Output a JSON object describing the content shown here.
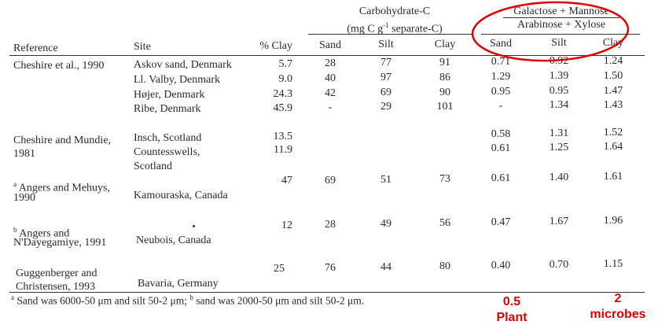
{
  "header": {
    "carb_title": "Carbohydrate-C",
    "carb_unit_pre": "(mg C g",
    "carb_unit_exp": "-1",
    "carb_unit_post": " separate-C)",
    "ratio_numerator": "Galactose + Mannose",
    "ratio_denominator": "Arabinose + Xylose",
    "col_reference": "Reference",
    "col_site": "Site",
    "col_clay_pct": "% Clay",
    "col_sand": "Sand",
    "col_silt": "Silt",
    "col_clay": "Clay",
    "col_r_sand": "Sand",
    "col_r_silt": "Silt",
    "col_r_clay": "Clay"
  },
  "rows": [
    {
      "ref1": "Cheshire et al., 1990",
      "ref2": "",
      "site1": "Askov sand, Denmark",
      "site2": "",
      "clay_pct": "5.7",
      "sand": "28",
      "silt": "77",
      "clay": "91",
      "r_sand": "0.71",
      "r_silt": "0.92",
      "r_clay": "1.24"
    },
    {
      "ref1": "",
      "ref2": "",
      "site1": "Ll. Valby, Denmark",
      "site2": "",
      "clay_pct": "9.0",
      "sand": "40",
      "silt": "97",
      "clay": "86",
      "r_sand": "1.29",
      "r_silt": "1.39",
      "r_clay": "1.50"
    },
    {
      "ref1": "",
      "ref2": "",
      "site1": "Højer, Denmark",
      "site2": "",
      "clay_pct": "24.3",
      "sand": "42",
      "silt": "69",
      "clay": "90",
      "r_sand": "0.95",
      "r_silt": "0.95",
      "r_clay": "1.47"
    },
    {
      "ref1": "",
      "ref2": "",
      "site1": "Ribe, Denmark",
      "site2": "",
      "clay_pct": "45.9",
      "sand": "-",
      "silt": "29",
      "clay": "101",
      "r_sand": "-",
      "r_silt": "1.34",
      "r_clay": "1.43"
    },
    {
      "ref1": "Cheshire and Mundie,",
      "ref2": "1981",
      "site1": "Insch, Scotland",
      "site2": "",
      "clay_pct": "13.5",
      "sand": "",
      "silt": "",
      "clay": "",
      "r_sand": "0.58",
      "r_silt": "1.31",
      "r_clay": "1.52"
    },
    {
      "ref1": "",
      "ref2": "",
      "site1": "Countesswells,",
      "site2": "Scotland",
      "clay_pct": "11.9",
      "sand": "",
      "silt": "",
      "clay": "",
      "r_sand": "0.61",
      "r_silt": "1.25",
      "r_clay": "1.64"
    },
    {
      "ref_sup": "a",
      "ref1": " Angers and Mehuys,",
      "ref2": "1990",
      "site1": "",
      "site2": "Kamouraska, Canada",
      "clay_pct": "47",
      "sand": "69",
      "silt": "51",
      "clay": "73",
      "r_sand": "0.61",
      "r_silt": "1.40",
      "r_clay": "1.61"
    },
    {
      "ref_sup": "b",
      "ref1": " Angers and",
      "ref2": "N'Dayegamiye, 1991",
      "site1": "",
      "site2": "Neubois, Canada",
      "clay_pct": "12",
      "sand": "28",
      "silt": "49",
      "clay": "56",
      "r_sand": "0.47",
      "r_silt": "1.67",
      "r_clay": "1.96"
    },
    {
      "ref1": "Guggenberger and",
      "ref2": "Christensen, 1993",
      "site1": "",
      "site2": "Bavaria, Germany",
      "clay_pct": "25",
      "sand": "76",
      "silt": "44",
      "clay": "80",
      "r_sand": "0.40",
      "r_silt": "0.70",
      "r_clay": "1.15"
    }
  ],
  "footnote": {
    "a_mark": "a",
    "a_text": " Sand was 6000-50 μm and silt 50-2 μm; ",
    "b_mark": "b",
    "b_text": " sand was 2000-50 μm and silt 50-2 μm."
  },
  "annotations": {
    "plant_value": "0.5",
    "plant_label": "Plant",
    "microbe_value": "2",
    "microbe_label": "microbes",
    "circle_color": "#e00000"
  }
}
